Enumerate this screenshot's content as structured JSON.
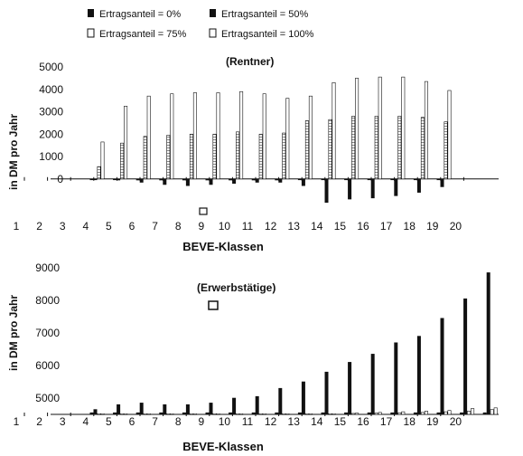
{
  "legend": {
    "entries": [
      {
        "label": "Ertragsanteil =   0%",
        "swatch": "filled"
      },
      {
        "label": "Ertragsanteil =   50%",
        "swatch": "filled"
      },
      {
        "label": "Ertragsanteil = 75%",
        "swatch": "open"
      },
      {
        "label": "Ertragsanteil = 100%",
        "swatch": "open"
      }
    ]
  },
  "colors": {
    "ink": "#111111",
    "paper": "#ffffff",
    "hatch": "#9a9a9a"
  },
  "chart_data": [
    {
      "type": "bar",
      "title": "(Rentner)",
      "xlabel": "BEVE-Klassen",
      "ylabel": "in DM pro Jahr",
      "ylim": [
        -1100,
        5000
      ],
      "yticks": [
        "0",
        "1000",
        "2000",
        "3000",
        "4000",
        "5000"
      ],
      "ytick_values": [
        0,
        1000,
        2000,
        3000,
        4000,
        5000
      ],
      "xtick_labels": [
        "1",
        "2",
        "3",
        "4",
        "5",
        "6",
        "7",
        "8",
        "9",
        "10",
        "11",
        "12",
        "13",
        "14",
        "15",
        "16",
        "17",
        "18",
        "19",
        "20"
      ],
      "categories": [
        "4",
        "5",
        "6",
        "7",
        "8",
        "9",
        "10",
        "11",
        "12",
        "13",
        "14",
        "15",
        "16",
        "17",
        "18",
        "19"
      ],
      "legend_position": "top",
      "grid": false,
      "series": [
        {
          "name": "Ertragsanteil =   0%",
          "style": "black",
          "values": [
            0,
            0,
            -50,
            -50,
            -50,
            -50,
            -50,
            -50,
            -50,
            0,
            0,
            0,
            0,
            0,
            0,
            0
          ]
        },
        {
          "name": "Ertragsanteil =   50%",
          "style": "black",
          "values": [
            -30,
            -50,
            -150,
            -250,
            -300,
            -250,
            -200,
            -150,
            -150,
            -300,
            -1050,
            -900,
            -850,
            -750,
            -600,
            -350
          ]
        },
        {
          "name": "Ertragsanteil = 75%",
          "style": "hatched",
          "values": [
            550,
            1600,
            1900,
            1950,
            2000,
            2000,
            2100,
            2000,
            2050,
            2600,
            2650,
            2800,
            2800,
            2800,
            2750,
            2550
          ]
        },
        {
          "name": "Ertragsanteil = 100%",
          "style": "open",
          "values": [
            1650,
            3250,
            3700,
            3800,
            3850,
            3850,
            3900,
            3800,
            3600,
            3700,
            4300,
            4500,
            4550,
            4550,
            4350,
            3950
          ]
        }
      ]
    },
    {
      "type": "bar",
      "title": "(Erwerbstätige)",
      "xlabel": "BEVE-Klassen",
      "ylabel": "in DM pro Jahr",
      "ylim": [
        4500,
        9000
      ],
      "yticks": [
        "5000",
        "6000",
        "7000",
        "8000",
        "9000"
      ],
      "ytick_values": [
        5000,
        6000,
        7000,
        8000,
        9000
      ],
      "xtick_labels": [
        "1",
        "2",
        "3",
        "4",
        "5",
        "6",
        "7",
        "8",
        "9",
        "10",
        "11",
        "12",
        "13",
        "14",
        "15",
        "16",
        "17",
        "18",
        "19",
        "20"
      ],
      "categories": [
        "4",
        "5",
        "6",
        "7",
        "8",
        "9",
        "10",
        "11",
        "12",
        "13",
        "14",
        "15",
        "16",
        "17",
        "18",
        "19",
        "20",
        "21"
      ],
      "legend_position": "top",
      "grid": false,
      "series": [
        {
          "name": "Ertragsanteil =   0%",
          "style": "black",
          "values": [
            4550,
            4550,
            4550,
            4550,
            4550,
            4550,
            4550,
            4550,
            4550,
            4550,
            4550,
            4550,
            4550,
            4550,
            4550,
            4550,
            4550,
            4550
          ]
        },
        {
          "name": "Ertragsanteil =   50%",
          "style": "black",
          "values": [
            4650,
            4800,
            4850,
            4800,
            4800,
            4850,
            5000,
            5050,
            5300,
            5500,
            5800,
            6100,
            6350,
            6700,
            6900,
            7450,
            8050,
            8850
          ]
        },
        {
          "name": "Ertragsanteil = 75%",
          "style": "open",
          "values": [
            4520,
            4520,
            4520,
            4520,
            4520,
            4520,
            4520,
            4520,
            4520,
            4520,
            4520,
            4530,
            4540,
            4550,
            4560,
            4580,
            4600,
            4650
          ]
        },
        {
          "name": "Ertragsanteil = 100%",
          "style": "open",
          "values": [
            4520,
            4520,
            4520,
            4520,
            4520,
            4520,
            4520,
            4520,
            4520,
            4520,
            4520,
            4540,
            4560,
            4580,
            4600,
            4620,
            4680,
            4700
          ]
        }
      ]
    }
  ]
}
